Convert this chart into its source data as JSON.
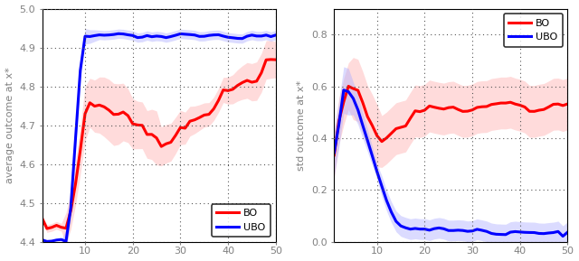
{
  "left_ylabel": "average outcome at x*",
  "right_ylabel": "std outcome at x*",
  "xlim": [
    1,
    50
  ],
  "left_ylim": [
    4.4,
    5.0
  ],
  "right_ylim": [
    0,
    0.9
  ],
  "left_yticks": [
    4.4,
    4.5,
    4.6,
    4.7,
    4.8,
    4.9,
    5.0
  ],
  "right_yticks": [
    0,
    0.2,
    0.4,
    0.6,
    0.8
  ],
  "xticks": [
    10,
    20,
    30,
    40,
    50
  ],
  "bo_color": "#ff0000",
  "ubo_color": "#0000ff",
  "bo_fill_color": "#ffb0b0",
  "ubo_fill_color": "#b0b0ff",
  "linewidth": 2.2,
  "fill_alpha": 0.45,
  "background_color": "#ffffff",
  "grid_color": "#555555",
  "legend_loc_left": "lower right",
  "legend_loc_right": "upper right"
}
